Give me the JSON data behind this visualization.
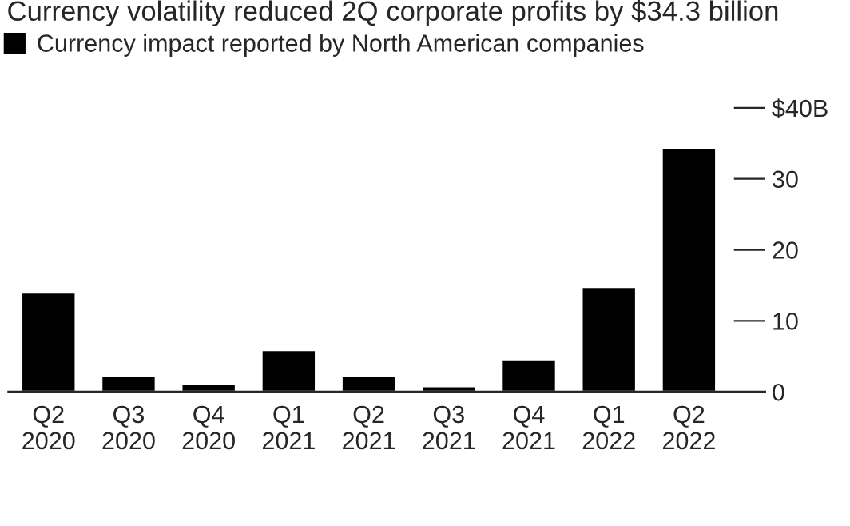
{
  "chart_data": {
    "type": "bar",
    "title": "Currency volatility reduced 2Q corporate profits by $34.3 billion",
    "categories": [
      "Q2\n2020",
      "Q3\n2020",
      "Q4\n2020",
      "Q1\n2021",
      "Q2\n2021",
      "Q3\n2021",
      "Q4\n2021",
      "Q1\n2022",
      "Q2\n2022"
    ],
    "series": [
      {
        "name": "Currency impact reported by North American companies",
        "color": "#000000",
        "values": [
          14.0,
          2.2,
          1.2,
          5.9,
          2.3,
          0.8,
          4.6,
          14.8,
          34.3
        ]
      }
    ],
    "ylim": [
      0,
      40
    ],
    "yticks": [
      0,
      10,
      20,
      30,
      {
        "value": 40,
        "label": "$40B"
      }
    ],
    "legend": "top left",
    "grid": false
  }
}
